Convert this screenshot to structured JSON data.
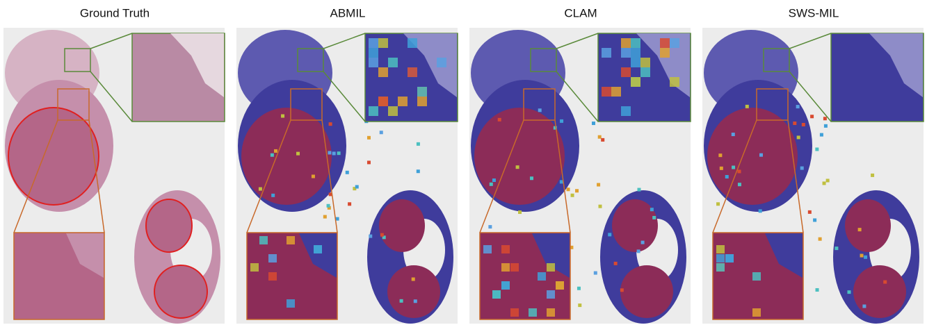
{
  "panels": [
    {
      "title": "Ground Truth"
    },
    {
      "title": "ABMIL"
    },
    {
      "title": "CLAM"
    },
    {
      "title": "SWS-MIL"
    }
  ]
}
